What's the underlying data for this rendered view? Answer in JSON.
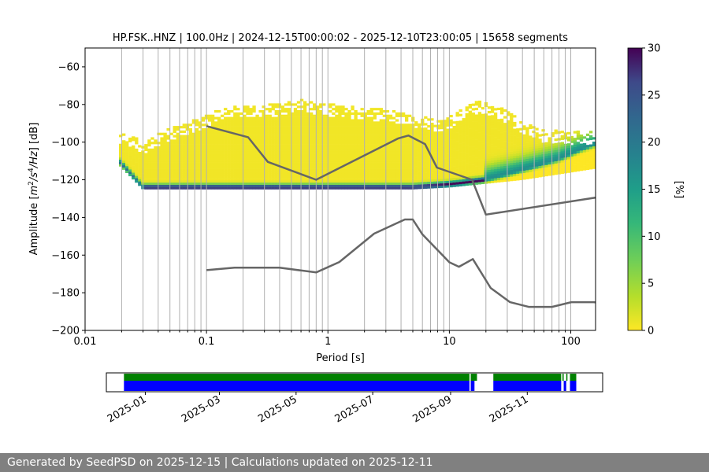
{
  "chart_data": [
    {
      "type": "heatmap",
      "title": "HP.FSK..HNZ | 100.0Hz | 2024-12-15T00:00:02 - 2025-12-10T23:00:05 | 15658 segments",
      "xlabel": "Period [s]",
      "ylabel_parts": [
        "Amplitude [",
        "m",
        "2",
        "/s",
        "4",
        "/Hz",
        "] [dB]"
      ],
      "x_scale": "log",
      "xlim": [
        0.01,
        160
      ],
      "ylim": [
        -200,
        -50
      ],
      "x_ticks": [
        {
          "value": 0.01,
          "label": "0.01"
        },
        {
          "value": 0.1,
          "label": "0.1"
        },
        {
          "value": 1,
          "label": "1"
        },
        {
          "value": 10,
          "label": "10"
        },
        {
          "value": 100,
          "label": "100"
        }
      ],
      "y_ticks": [
        -60,
        -80,
        -100,
        -120,
        -140,
        -160,
        -180,
        -200
      ],
      "grid_periods": [
        0.02,
        0.03,
        0.04,
        0.05,
        0.06,
        0.07,
        0.08,
        0.09,
        0.1,
        0.2,
        0.3,
        0.4,
        0.5,
        0.6,
        0.7,
        0.8,
        0.9,
        1,
        2,
        3,
        4,
        5,
        6,
        7,
        8,
        9,
        10,
        20,
        30,
        40,
        50,
        60,
        70,
        80,
        90,
        100
      ],
      "colorbar": {
        "label": "[%]",
        "ticks": [
          0,
          5,
          10,
          15,
          20,
          25,
          30
        ],
        "range": [
          0,
          30
        ],
        "colormap": "viridis_r"
      },
      "density_band": {
        "mode_curve": [
          [
            0.019,
            -110
          ],
          [
            0.03,
            -124
          ],
          [
            0.1,
            -124
          ],
          [
            1,
            -124
          ],
          [
            3,
            -124
          ],
          [
            5,
            -124
          ],
          [
            8,
            -123
          ],
          [
            12,
            -122
          ],
          [
            15,
            -121
          ],
          [
            20,
            -120
          ],
          [
            30,
            -117
          ],
          [
            50,
            -113
          ],
          [
            80,
            -109
          ],
          [
            120,
            -104
          ],
          [
            160,
            -101
          ]
        ],
        "upper_envelope": [
          [
            0.019,
            -95
          ],
          [
            0.03,
            -100
          ],
          [
            0.05,
            -93
          ],
          [
            0.1,
            -86
          ],
          [
            0.15,
            -81
          ],
          [
            0.3,
            -81
          ],
          [
            0.6,
            -78
          ],
          [
            1,
            -80
          ],
          [
            2,
            -82
          ],
          [
            4,
            -84
          ],
          [
            8,
            -89
          ],
          [
            10,
            -87
          ],
          [
            14,
            -80
          ],
          [
            18,
            -79
          ],
          [
            25,
            -81
          ],
          [
            40,
            -89
          ],
          [
            60,
            -94
          ],
          [
            100,
            -95
          ],
          [
            160,
            -95
          ]
        ],
        "lower_envelope": [
          [
            0.019,
            -112
          ],
          [
            0.03,
            -125
          ],
          [
            0.1,
            -125
          ],
          [
            1,
            -125
          ],
          [
            5,
            -125
          ],
          [
            10,
            -124
          ],
          [
            20,
            -122
          ],
          [
            40,
            -120
          ],
          [
            80,
            -117
          ],
          [
            160,
            -114
          ]
        ]
      },
      "series": [
        {
          "name": "upper noise model",
          "color": "#666666",
          "points": [
            [
              0.1,
              -91.5
            ],
            [
              0.22,
              -97.4
            ],
            [
              0.32,
              -110.5
            ],
            [
              0.8,
              -120
            ],
            [
              3.8,
              -98
            ],
            [
              4.6,
              -96.5
            ],
            [
              6.3,
              -101
            ],
            [
              7.9,
              -113.5
            ],
            [
              15.4,
              -120
            ],
            [
              20,
              -138.5
            ],
            [
              354.8,
              -126
            ]
          ]
        },
        {
          "name": "lower noise model",
          "color": "#666666",
          "points": [
            [
              0.1,
              -168
            ],
            [
              0.17,
              -166.7
            ],
            [
              0.4,
              -166.7
            ],
            [
              0.8,
              -169.2
            ],
            [
              1.24,
              -163.7
            ],
            [
              2.4,
              -148.6
            ],
            [
              4.3,
              -141.1
            ],
            [
              5,
              -141.1
            ],
            [
              6,
              -149
            ],
            [
              10,
              -163.8
            ],
            [
              12,
              -166.2
            ],
            [
              15.6,
              -162.1
            ],
            [
              21.9,
              -177.5
            ],
            [
              31.6,
              -185
            ],
            [
              45,
              -187.5
            ],
            [
              70,
              -187.5
            ],
            [
              101,
              -185
            ],
            [
              154,
              -185
            ],
            [
              328,
              -187.5
            ]
          ]
        }
      ]
    },
    {
      "type": "timeline",
      "xlim": [
        "2024-12-01",
        "2025-12-31"
      ],
      "x_ticks": [
        "2025-01",
        "2025-03",
        "2025-05",
        "2025-07",
        "2025-09",
        "2025-11"
      ],
      "series": [
        {
          "name": "data availability",
          "color": "#008000",
          "intervals": [
            [
              "2024-12-15",
              "2025-09-16"
            ],
            [
              "2025-09-17",
              "2025-09-22"
            ],
            [
              "2025-10-05",
              "2025-11-28"
            ],
            [
              "2025-11-29",
              "2025-11-30"
            ],
            [
              "2025-12-02",
              "2025-12-03"
            ],
            [
              "2025-12-05",
              "2025-12-10"
            ]
          ]
        },
        {
          "name": "psd segments",
          "color": "#0000ff",
          "intervals": [
            [
              "2024-12-15",
              "2025-09-16"
            ],
            [
              "2025-09-17",
              "2025-09-20"
            ],
            [
              "2025-10-05",
              "2025-11-28"
            ],
            [
              "2025-11-30",
              "2025-12-02"
            ],
            [
              "2025-12-05",
              "2025-12-10"
            ]
          ]
        }
      ]
    }
  ],
  "footer": {
    "text": "Generated by SeedPSD on 2025-12-15 | Calculations updated on 2025-12-11"
  }
}
